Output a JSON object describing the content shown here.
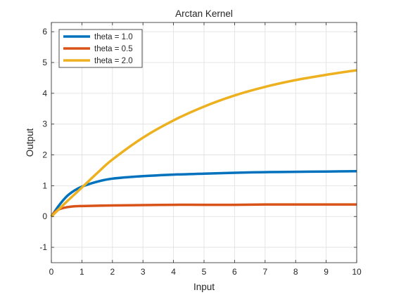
{
  "chart_data": {
    "type": "line",
    "title": "Arctan Kernel",
    "xlabel": "Input",
    "ylabel": "Output",
    "xlim": [
      0,
      10
    ],
    "ylim": [
      -1.5,
      6.3
    ],
    "xticks": [
      0,
      1,
      2,
      3,
      4,
      5,
      6,
      7,
      8,
      9,
      10
    ],
    "yticks": [
      -1,
      0,
      1,
      2,
      3,
      4,
      5,
      6
    ],
    "grid": true,
    "legend_position": "top-left",
    "series": [
      {
        "name": "theta = 1.0",
        "color": "#0072BD",
        "x": [
          0,
          0.25,
          0.5,
          0.75,
          1,
          1.5,
          2,
          3,
          4,
          5,
          6,
          7,
          8,
          9,
          10
        ],
        "y": [
          0,
          0.36,
          0.65,
          0.84,
          0.97,
          1.13,
          1.23,
          1.31,
          1.36,
          1.39,
          1.42,
          1.44,
          1.45,
          1.46,
          1.47
        ]
      },
      {
        "name": "theta = 0.5",
        "color": "#D95319",
        "x": [
          0,
          0.1,
          0.2,
          0.3,
          0.5,
          0.75,
          1,
          2,
          3,
          4,
          5,
          6,
          7,
          8,
          9,
          10
        ],
        "y": [
          0,
          0.13,
          0.2,
          0.25,
          0.3,
          0.33,
          0.34,
          0.36,
          0.37,
          0.38,
          0.38,
          0.38,
          0.39,
          0.39,
          0.39,
          0.39
        ]
      },
      {
        "name": "theta = 2.0",
        "color": "#EDB120",
        "x": [
          0,
          0.5,
          1,
          1.5,
          2,
          3,
          4,
          5,
          6,
          7,
          8,
          9,
          10
        ],
        "y": [
          0,
          0.48,
          0.94,
          1.41,
          1.85,
          2.56,
          3.12,
          3.57,
          3.93,
          4.21,
          4.43,
          4.6,
          4.75
        ]
      }
    ]
  }
}
